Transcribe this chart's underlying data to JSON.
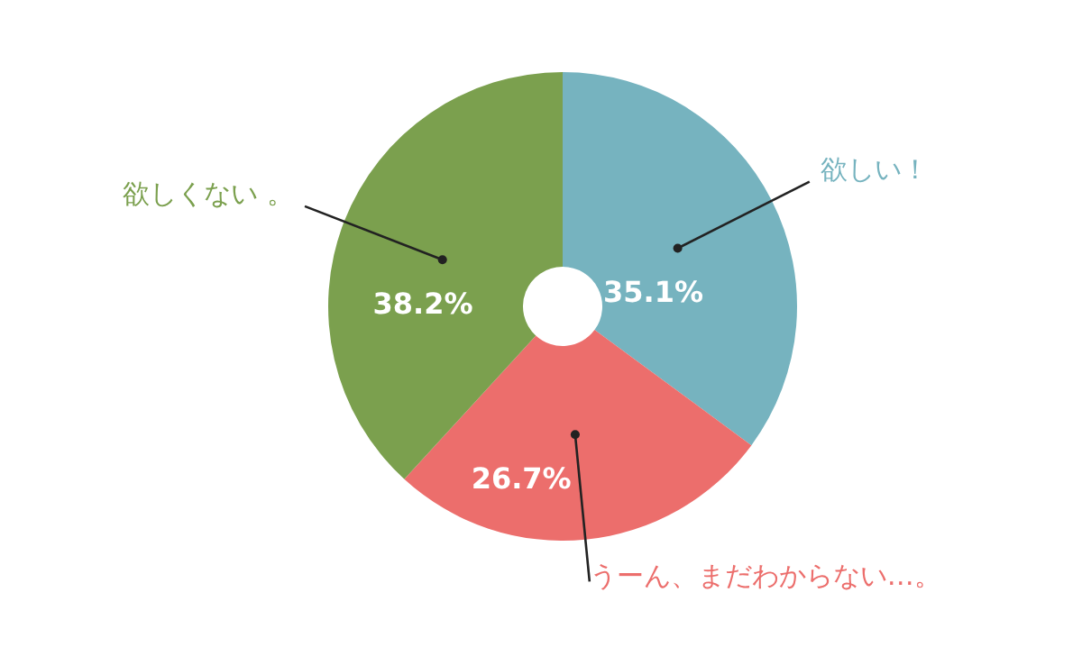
{
  "chart_data": {
    "type": "donut",
    "categories": [
      "欲しい！",
      "うーん、まだわからない…。",
      "欲しくない 。"
    ],
    "values": [
      35.1,
      26.7,
      38.2
    ],
    "colors": [
      "#76b3bf",
      "#ec6e6c",
      "#7ba04e"
    ],
    "value_labels": [
      "35.1%",
      "26.7%",
      "38.2%"
    ],
    "legend": false
  }
}
